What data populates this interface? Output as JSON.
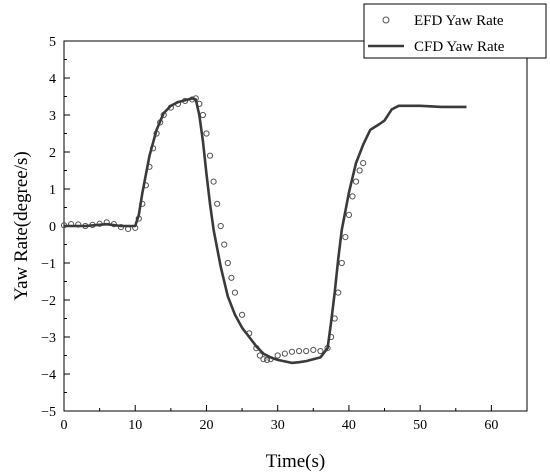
{
  "chart_data": {
    "type": "line",
    "title": "",
    "xlabel": "Time(s)",
    "ylabel": "Yaw Rate(degree/s)",
    "xlim": [
      0,
      65
    ],
    "ylim": [
      -5,
      5
    ],
    "xticks": [
      0,
      10,
      20,
      30,
      40,
      50,
      60
    ],
    "yticks": [
      -5,
      -4,
      -3,
      -2,
      -1,
      0,
      1,
      2,
      3,
      4,
      5
    ],
    "grid": false,
    "legend_position": "top-right",
    "series": [
      {
        "name": "EFD Yaw Rate",
        "style": "scatter-open-circle",
        "color": "#555555",
        "points": [
          [
            0,
            0.02
          ],
          [
            1,
            0.05
          ],
          [
            2,
            0.04
          ],
          [
            3,
            0.0
          ],
          [
            4,
            0.03
          ],
          [
            5,
            0.06
          ],
          [
            6,
            0.1
          ],
          [
            7,
            0.05
          ],
          [
            8,
            -0.03
          ],
          [
            9,
            -0.08
          ],
          [
            10,
            -0.05
          ],
          [
            10.5,
            0.2
          ],
          [
            11,
            0.6
          ],
          [
            11.5,
            1.1
          ],
          [
            12,
            1.6
          ],
          [
            12.5,
            2.1
          ],
          [
            13,
            2.5
          ],
          [
            13.5,
            2.8
          ],
          [
            14,
            3.0
          ],
          [
            15,
            3.2
          ],
          [
            16,
            3.3
          ],
          [
            17,
            3.38
          ],
          [
            18,
            3.42
          ],
          [
            18.5,
            3.45
          ],
          [
            19,
            3.3
          ],
          [
            19.5,
            3.0
          ],
          [
            20,
            2.5
          ],
          [
            20.5,
            1.9
          ],
          [
            21,
            1.2
          ],
          [
            21.5,
            0.6
          ],
          [
            22,
            0.0
          ],
          [
            22.5,
            -0.5
          ],
          [
            23,
            -1.0
          ],
          [
            23.5,
            -1.4
          ],
          [
            24,
            -1.8
          ],
          [
            25,
            -2.4
          ],
          [
            26,
            -2.9
          ],
          [
            27,
            -3.3
          ],
          [
            27.5,
            -3.5
          ],
          [
            28,
            -3.6
          ],
          [
            28.5,
            -3.62
          ],
          [
            29,
            -3.6
          ],
          [
            30,
            -3.5
          ],
          [
            31,
            -3.45
          ],
          [
            32,
            -3.4
          ],
          [
            33,
            -3.38
          ],
          [
            34,
            -3.38
          ],
          [
            35,
            -3.35
          ],
          [
            36,
            -3.38
          ],
          [
            37,
            -3.3
          ],
          [
            37.5,
            -3.0
          ],
          [
            38,
            -2.5
          ],
          [
            38.5,
            -1.8
          ],
          [
            39,
            -1.0
          ],
          [
            39.5,
            -0.3
          ],
          [
            40,
            0.3
          ],
          [
            40.5,
            0.8
          ],
          [
            41,
            1.2
          ],
          [
            41.5,
            1.5
          ],
          [
            42,
            1.7
          ]
        ]
      },
      {
        "name": "CFD Yaw Rate",
        "style": "line",
        "color": "#3a3a3a",
        "points": [
          [
            0,
            0.0
          ],
          [
            3,
            0.0
          ],
          [
            6,
            0.05
          ],
          [
            8,
            0.0
          ],
          [
            10,
            0.0
          ],
          [
            10.5,
            0.3
          ],
          [
            11,
            0.9
          ],
          [
            12,
            1.9
          ],
          [
            13,
            2.6
          ],
          [
            14,
            3.05
          ],
          [
            15,
            3.25
          ],
          [
            16,
            3.35
          ],
          [
            17,
            3.4
          ],
          [
            18,
            3.45
          ],
          [
            18.5,
            3.42
          ],
          [
            19,
            3.0
          ],
          [
            19.5,
            2.3
          ],
          [
            20,
            1.4
          ],
          [
            20.5,
            0.6
          ],
          [
            21,
            -0.1
          ],
          [
            22,
            -1.1
          ],
          [
            23,
            -1.9
          ],
          [
            24,
            -2.4
          ],
          [
            25,
            -2.75
          ],
          [
            26,
            -3.0
          ],
          [
            27,
            -3.25
          ],
          [
            28,
            -3.45
          ],
          [
            29,
            -3.55
          ],
          [
            30,
            -3.62
          ],
          [
            31,
            -3.66
          ],
          [
            32,
            -3.7
          ],
          [
            33,
            -3.68
          ],
          [
            34,
            -3.65
          ],
          [
            35,
            -3.6
          ],
          [
            36,
            -3.55
          ],
          [
            37,
            -3.3
          ],
          [
            37.5,
            -2.6
          ],
          [
            38,
            -1.8
          ],
          [
            38.5,
            -0.9
          ],
          [
            39,
            -0.1
          ],
          [
            40,
            0.9
          ],
          [
            41,
            1.7
          ],
          [
            42,
            2.2
          ],
          [
            43,
            2.6
          ],
          [
            44,
            2.72
          ],
          [
            45,
            2.85
          ],
          [
            46,
            3.15
          ],
          [
            47,
            3.25
          ],
          [
            50,
            3.25
          ],
          [
            53,
            3.22
          ],
          [
            56.5,
            3.22
          ]
        ]
      }
    ]
  }
}
